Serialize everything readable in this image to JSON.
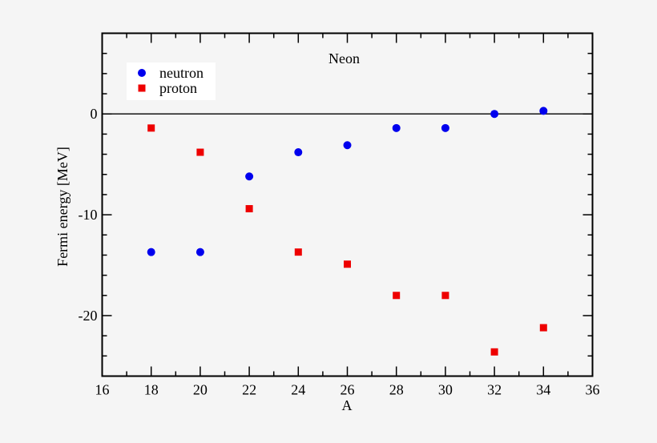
{
  "chart_data": {
    "type": "scatter",
    "title": "Neon",
    "xlabel": "A",
    "ylabel": "Fermi energy [MeV]",
    "xlim": [
      16,
      36
    ],
    "ylim": [
      -26,
      8
    ],
    "x_major_ticks": [
      16,
      18,
      20,
      22,
      24,
      26,
      28,
      30,
      32,
      34,
      36
    ],
    "x_minor_step": 1,
    "y_major_ticks": [
      0,
      -10,
      -20
    ],
    "y_minor_step": 2,
    "grid": false,
    "zero_line": true,
    "legend_position": "upper-left",
    "x": [
      18,
      20,
      22,
      24,
      26,
      28,
      30,
      32,
      34
    ],
    "series": [
      {
        "name": "neutron",
        "marker": "circle",
        "color": "#0000ee",
        "values": [
          -13.7,
          -13.7,
          -6.2,
          -3.8,
          -3.1,
          -1.4,
          -1.4,
          0.0,
          0.3
        ]
      },
      {
        "name": "proton",
        "marker": "square",
        "color": "#ee0000",
        "values": [
          -1.4,
          -3.8,
          -9.4,
          -13.7,
          -14.9,
          -18.0,
          -18.0,
          -23.6,
          -21.2
        ]
      }
    ]
  },
  "colors": {
    "background": "#f5f5f5",
    "axis": "#000000",
    "legend_background": "#ffffff"
  }
}
